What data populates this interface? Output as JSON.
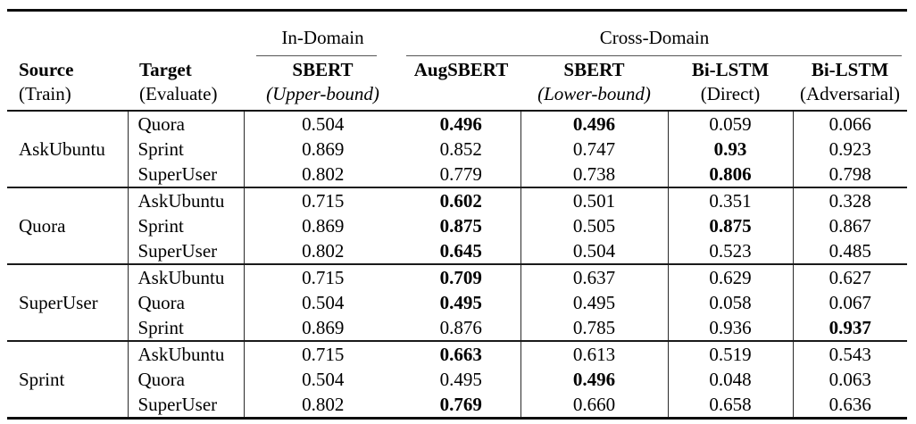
{
  "table": {
    "span_headers": {
      "in_domain": "In-Domain",
      "cross_domain": "Cross-Domain"
    },
    "columns": {
      "source": {
        "line1": "Source",
        "line2": "(Train)"
      },
      "target": {
        "line1": "Target",
        "line2": "(Evaluate)"
      },
      "sbert_upper": {
        "line1": "SBERT",
        "line2": "(Upper-bound)"
      },
      "augsbert": {
        "line1": "AugSBERT",
        "line2": ""
      },
      "sbert_lower": {
        "line1": "SBERT",
        "line2": "(Lower-bound)"
      },
      "bilstm_direct": {
        "line1": "Bi-LSTM",
        "line2": "(Direct)"
      },
      "bilstm_adversarial": {
        "line1": "Bi-LSTM",
        "line2": "(Adversarial)"
      }
    },
    "groups": [
      {
        "source": "AskUbuntu",
        "rows": [
          {
            "target": "Quora",
            "values": [
              {
                "v": "0.504",
                "b": false
              },
              {
                "v": "0.496",
                "b": true
              },
              {
                "v": "0.496",
                "b": true
              },
              {
                "v": "0.059",
                "b": false
              },
              {
                "v": "0.066",
                "b": false
              }
            ]
          },
          {
            "target": "Sprint",
            "values": [
              {
                "v": "0.869",
                "b": false
              },
              {
                "v": "0.852",
                "b": false
              },
              {
                "v": "0.747",
                "b": false
              },
              {
                "v": "0.93",
                "b": true
              },
              {
                "v": "0.923",
                "b": false
              }
            ]
          },
          {
            "target": "SuperUser",
            "values": [
              {
                "v": "0.802",
                "b": false
              },
              {
                "v": "0.779",
                "b": false
              },
              {
                "v": "0.738",
                "b": false
              },
              {
                "v": "0.806",
                "b": true
              },
              {
                "v": "0.798",
                "b": false
              }
            ]
          }
        ]
      },
      {
        "source": "Quora",
        "rows": [
          {
            "target": "AskUbuntu",
            "values": [
              {
                "v": "0.715",
                "b": false
              },
              {
                "v": "0.602",
                "b": true
              },
              {
                "v": "0.501",
                "b": false
              },
              {
                "v": "0.351",
                "b": false
              },
              {
                "v": "0.328",
                "b": false
              }
            ]
          },
          {
            "target": "Sprint",
            "values": [
              {
                "v": "0.869",
                "b": false
              },
              {
                "v": "0.875",
                "b": true
              },
              {
                "v": "0.505",
                "b": false
              },
              {
                "v": "0.875",
                "b": true
              },
              {
                "v": "0.867",
                "b": false
              }
            ]
          },
          {
            "target": "SuperUser",
            "values": [
              {
                "v": "0.802",
                "b": false
              },
              {
                "v": "0.645",
                "b": true
              },
              {
                "v": "0.504",
                "b": false
              },
              {
                "v": "0.523",
                "b": false
              },
              {
                "v": "0.485",
                "b": false
              }
            ]
          }
        ]
      },
      {
        "source": "SuperUser",
        "rows": [
          {
            "target": "AskUbuntu",
            "values": [
              {
                "v": "0.715",
                "b": false
              },
              {
                "v": "0.709",
                "b": true
              },
              {
                "v": "0.637",
                "b": false
              },
              {
                "v": "0.629",
                "b": false
              },
              {
                "v": "0.627",
                "b": false
              }
            ]
          },
          {
            "target": "Quora",
            "values": [
              {
                "v": "0.504",
                "b": false
              },
              {
                "v": "0.495",
                "b": true
              },
              {
                "v": "0.495",
                "b": false
              },
              {
                "v": "0.058",
                "b": false
              },
              {
                "v": "0.067",
                "b": false
              }
            ]
          },
          {
            "target": "Sprint",
            "values": [
              {
                "v": "0.869",
                "b": false
              },
              {
                "v": "0.876",
                "b": false
              },
              {
                "v": "0.785",
                "b": false
              },
              {
                "v": "0.936",
                "b": false
              },
              {
                "v": "0.937",
                "b": true
              }
            ]
          }
        ]
      },
      {
        "source": "Sprint",
        "rows": [
          {
            "target": "AskUbuntu",
            "values": [
              {
                "v": "0.715",
                "b": false
              },
              {
                "v": "0.663",
                "b": true
              },
              {
                "v": "0.613",
                "b": false
              },
              {
                "v": "0.519",
                "b": false
              },
              {
                "v": "0.543",
                "b": false
              }
            ]
          },
          {
            "target": "Quora",
            "values": [
              {
                "v": "0.504",
                "b": false
              },
              {
                "v": "0.495",
                "b": false
              },
              {
                "v": "0.496",
                "b": true
              },
              {
                "v": "0.048",
                "b": false
              },
              {
                "v": "0.063",
                "b": false
              }
            ]
          },
          {
            "target": "SuperUser",
            "values": [
              {
                "v": "0.802",
                "b": false
              },
              {
                "v": "0.769",
                "b": true
              },
              {
                "v": "0.660",
                "b": false
              },
              {
                "v": "0.658",
                "b": false
              },
              {
                "v": "0.636",
                "b": false
              }
            ]
          }
        ]
      }
    ]
  }
}
